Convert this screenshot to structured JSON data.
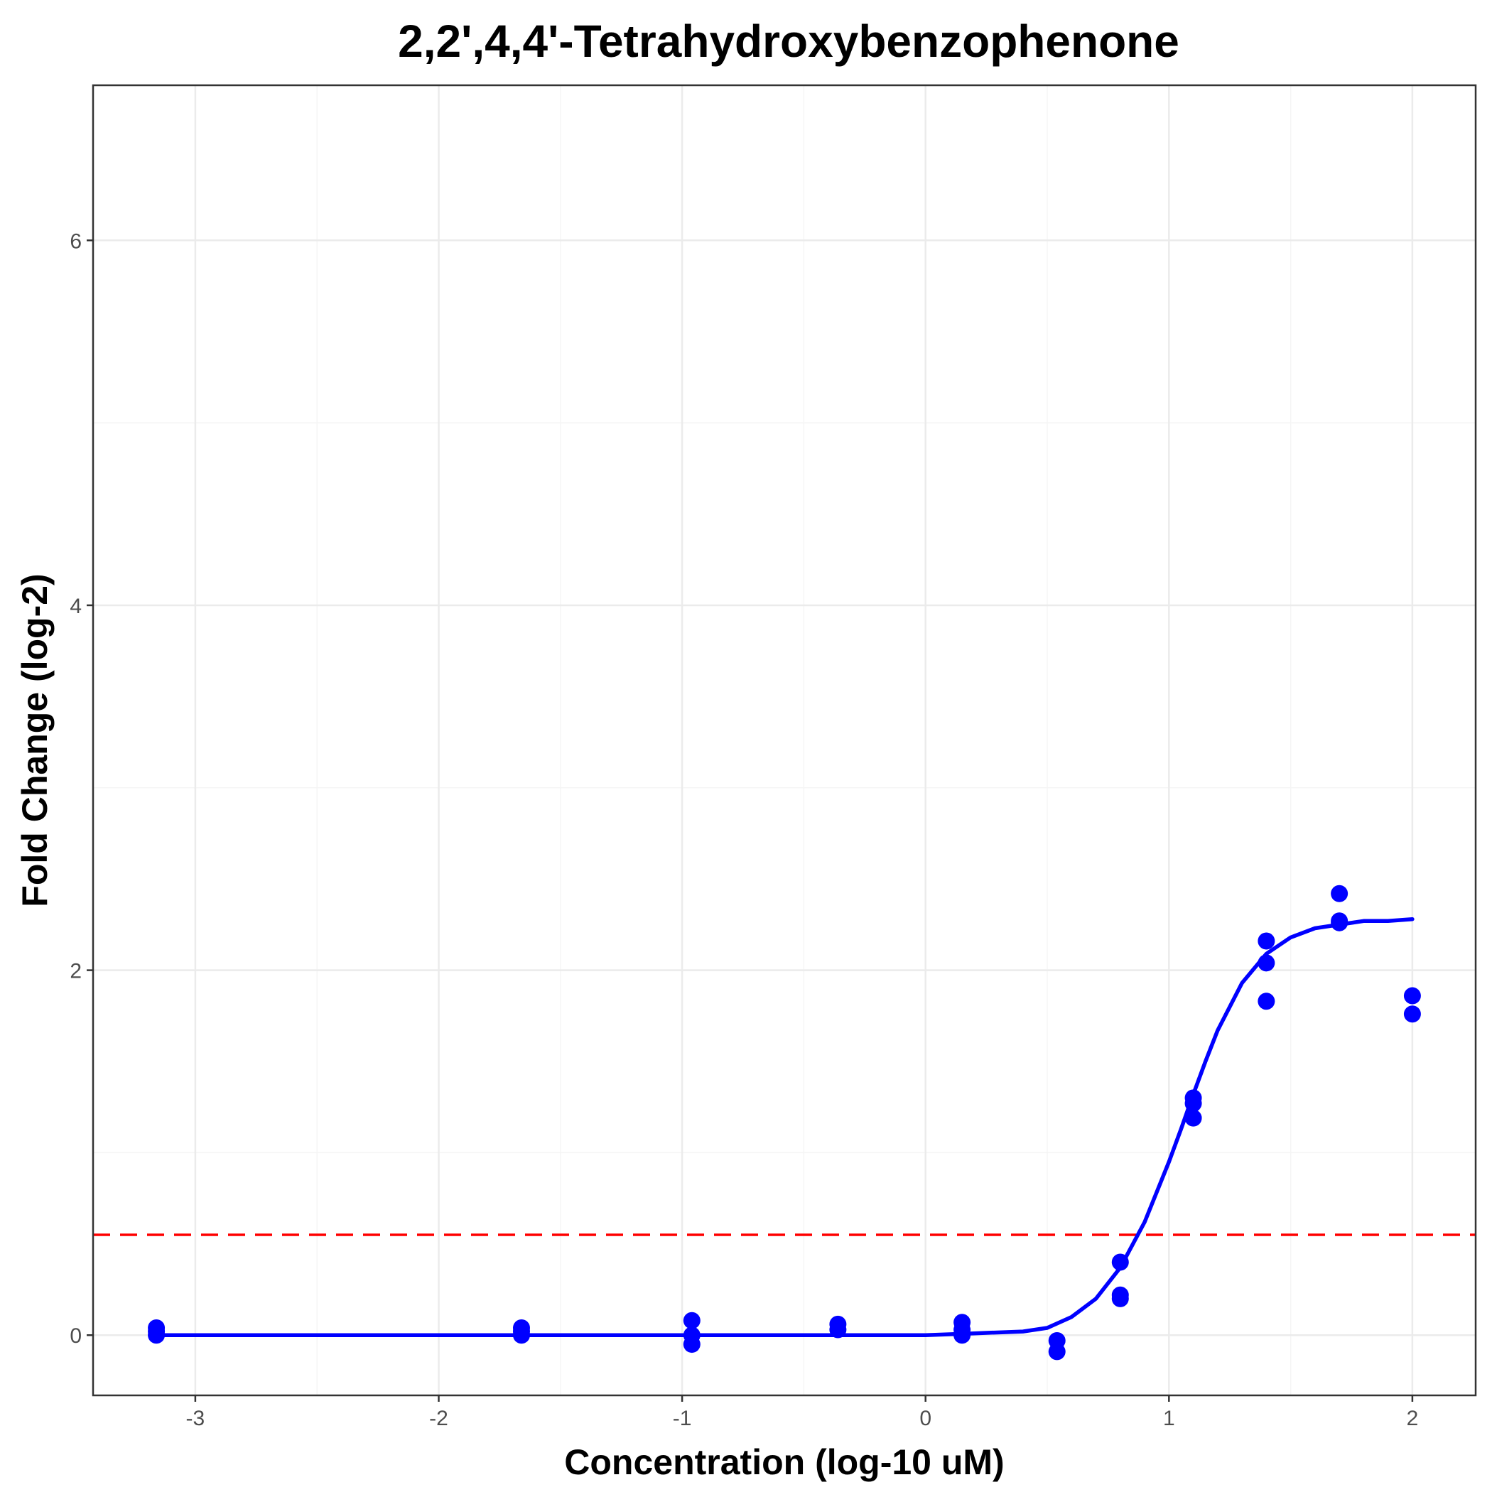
{
  "chart_data": {
    "type": "scatter",
    "title": "2,2',4,4'-Tetrahydroxybenzophenone",
    "xlabel": "Concentration (log-10 uM)",
    "ylabel": "Fold Change (log-2)",
    "xlim": [
      -3.42,
      2.26
    ],
    "ylim": [
      -0.33,
      6.85
    ],
    "x_ticks": [
      -3,
      -2,
      -1,
      0,
      1,
      2
    ],
    "y_ticks": [
      0,
      2,
      4,
      6
    ],
    "grid": true,
    "legend": "none",
    "colors": {
      "points": "#0000ff",
      "curve": "#0000ff",
      "threshold": "#ff0000",
      "grid_major": "#ebebeb",
      "grid_minor": "#f5f5f5",
      "panel_border": "#333333"
    },
    "threshold_line": {
      "y": 0.55,
      "style": "dashed"
    },
    "points": [
      {
        "x": -3.16,
        "y": 0.04
      },
      {
        "x": -3.16,
        "y": 0.02
      },
      {
        "x": -3.16,
        "y": 0.0
      },
      {
        "x": -1.66,
        "y": 0.04
      },
      {
        "x": -1.66,
        "y": 0.02
      },
      {
        "x": -1.66,
        "y": 0.0
      },
      {
        "x": -0.96,
        "y": 0.08
      },
      {
        "x": -0.96,
        "y": 0.0
      },
      {
        "x": -0.96,
        "y": -0.05
      },
      {
        "x": -0.36,
        "y": 0.06
      },
      {
        "x": -0.36,
        "y": 0.03
      },
      {
        "x": 0.15,
        "y": 0.07
      },
      {
        "x": 0.15,
        "y": 0.03
      },
      {
        "x": 0.15,
        "y": 0.0
      },
      {
        "x": 0.54,
        "y": -0.03
      },
      {
        "x": 0.54,
        "y": -0.09
      },
      {
        "x": 0.8,
        "y": 0.4
      },
      {
        "x": 0.8,
        "y": 0.22
      },
      {
        "x": 0.8,
        "y": 0.2
      },
      {
        "x": 1.1,
        "y": 1.3
      },
      {
        "x": 1.1,
        "y": 1.27
      },
      {
        "x": 1.1,
        "y": 1.19
      },
      {
        "x": 1.4,
        "y": 2.16
      },
      {
        "x": 1.4,
        "y": 2.04
      },
      {
        "x": 1.4,
        "y": 1.83
      },
      {
        "x": 1.7,
        "y": 2.42
      },
      {
        "x": 1.7,
        "y": 2.27
      },
      {
        "x": 1.7,
        "y": 2.26
      },
      {
        "x": 2.0,
        "y": 1.86
      },
      {
        "x": 2.0,
        "y": 1.76
      }
    ],
    "fit_curve": {
      "x": [
        -3.16,
        -2.5,
        -2.0,
        -1.5,
        -1.0,
        -0.5,
        0.0,
        0.2,
        0.4,
        0.5,
        0.6,
        0.7,
        0.8,
        0.9,
        1.0,
        1.05,
        1.1,
        1.15,
        1.2,
        1.3,
        1.4,
        1.5,
        1.6,
        1.7,
        1.8,
        1.9,
        2.0
      ],
      "y": [
        0.0,
        0.0,
        0.0,
        0.0,
        0.0,
        0.0,
        0.0,
        0.01,
        0.02,
        0.04,
        0.1,
        0.2,
        0.37,
        0.62,
        0.95,
        1.13,
        1.32,
        1.5,
        1.67,
        1.93,
        2.09,
        2.18,
        2.23,
        2.25,
        2.27,
        2.27,
        2.28
      ]
    }
  }
}
